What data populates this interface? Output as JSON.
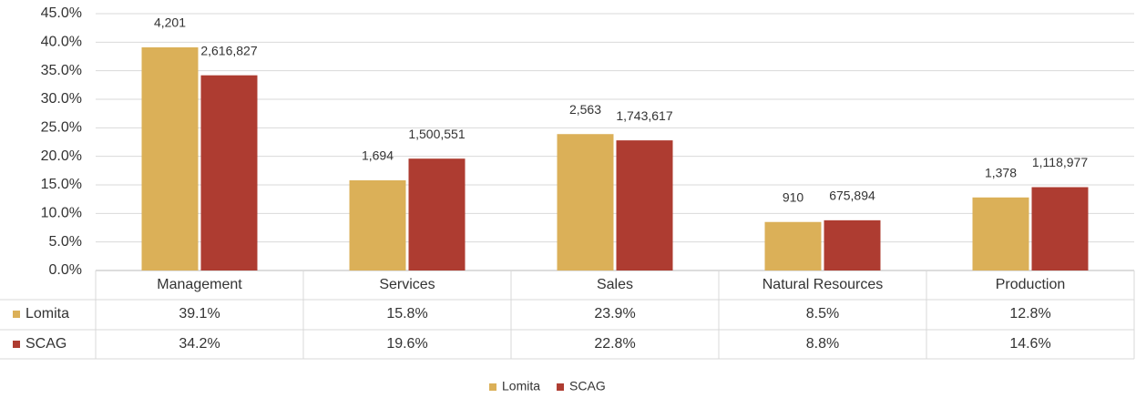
{
  "chart_data": {
    "type": "bar",
    "categories": [
      "Management",
      "Services",
      "Sales",
      "Natural Resources",
      "Production"
    ],
    "series": [
      {
        "name": "Lomita",
        "color": "#dbb058",
        "values": [
          39.1,
          15.8,
          23.9,
          8.5,
          12.8
        ],
        "value_labels": [
          "39.1%",
          "15.8%",
          "23.9%",
          "8.5%",
          "12.8%"
        ],
        "count_labels": [
          "4,201",
          "1,694",
          "2,563",
          "910",
          "1,378"
        ]
      },
      {
        "name": "SCAG",
        "color": "#ae3c31",
        "values": [
          34.2,
          19.6,
          22.8,
          8.8,
          14.6
        ],
        "value_labels": [
          "34.2%",
          "19.6%",
          "22.8%",
          "8.8%",
          "14.6%"
        ],
        "count_labels": [
          "2,616,827",
          "1,500,551",
          "1,743,617",
          "675,894",
          "1,118,977"
        ]
      }
    ],
    "ylim": [
      0,
      45
    ],
    "yticks": [
      {
        "value": 0,
        "label": "0.0%"
      },
      {
        "value": 5,
        "label": "5.0%"
      },
      {
        "value": 10,
        "label": "10.0%"
      },
      {
        "value": 15,
        "label": "15.0%"
      },
      {
        "value": 20,
        "label": "20.0%"
      },
      {
        "value": 25,
        "label": "25.0%"
      },
      {
        "value": 30,
        "label": "30.0%"
      },
      {
        "value": 35,
        "label": "35.0%"
      },
      {
        "value": 40,
        "label": "40.0%"
      },
      {
        "value": 45,
        "label": "45.0%"
      }
    ],
    "grid": true,
    "legend": "bottom"
  }
}
